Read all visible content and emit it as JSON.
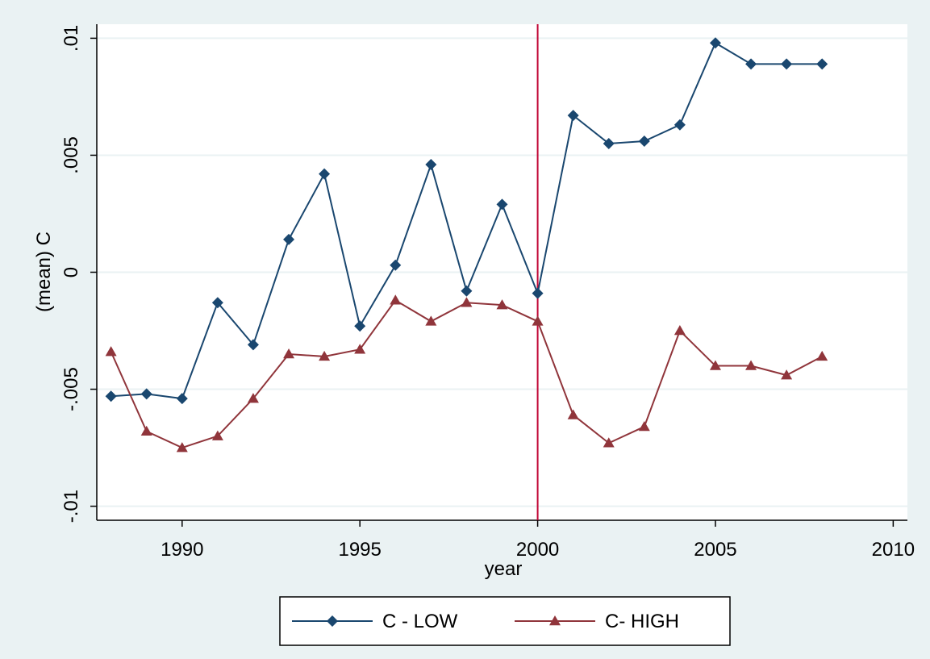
{
  "chart_data": {
    "type": "line",
    "x_label": "year",
    "y_label": "(mean) C",
    "x": [
      1988,
      1989,
      1990,
      1991,
      1992,
      1993,
      1994,
      1995,
      1996,
      1997,
      1998,
      1999,
      2000,
      2001,
      2002,
      2003,
      2004,
      2005,
      2006,
      2007,
      2008
    ],
    "series": [
      {
        "name": "C - LOW",
        "color": "#1a476f",
        "marker": "diamond",
        "values": [
          -0.0053,
          -0.0052,
          -0.0054,
          -0.0013,
          -0.0031,
          0.0014,
          0.0042,
          -0.0023,
          0.0003,
          0.0046,
          -0.0008,
          0.0029,
          -0.0009,
          0.0067,
          0.0055,
          0.0056,
          0.0063,
          0.0098,
          0.0089,
          0.0089,
          0.0089
        ]
      },
      {
        "name": "C- HIGH",
        "color": "#90353b",
        "marker": "triangle",
        "values": [
          -0.0034,
          -0.0068,
          -0.0075,
          -0.007,
          -0.0054,
          -0.0035,
          -0.0036,
          -0.0033,
          -0.0012,
          -0.0021,
          -0.0013,
          -0.0014,
          -0.0021,
          -0.0061,
          -0.0073,
          -0.0066,
          -0.0025,
          -0.004,
          -0.004,
          -0.0044,
          -0.0036
        ]
      }
    ],
    "xlim": [
      1987.6,
      2010.4
    ],
    "xticks": [
      1990,
      1995,
      2000,
      2005,
      2010
    ],
    "ylim": [
      -0.0106,
      0.0106
    ],
    "yticks": [
      {
        "value": -0.01,
        "label": "-.01"
      },
      {
        "value": -0.005,
        "label": "-.005"
      },
      0,
      {
        "value": 0.005,
        "label": ".005"
      },
      {
        "value": 0.01,
        "label": ".01"
      }
    ],
    "grid": true,
    "xline": 2000,
    "xline_color": "#c10534",
    "legend": "bottom"
  }
}
